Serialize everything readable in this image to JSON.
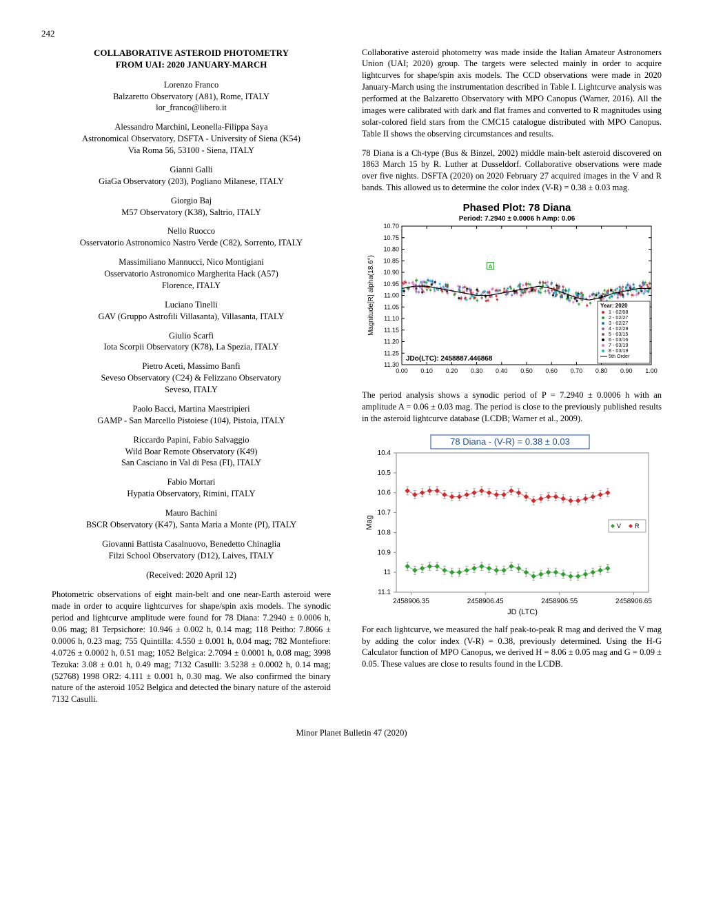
{
  "page_number": "242",
  "title_line1": "COLLABORATIVE ASTEROID PHOTOMETRY",
  "title_line2": "FROM UAI: 2020 JANUARY-MARCH",
  "authors": [
    {
      "name": "Lorenzo Franco",
      "affil": "Balzaretto Observatory (A81), Rome, ITALY",
      "email": "lor_franco@libero.it"
    },
    {
      "name": "Alessandro Marchini, Leonella-Filippa Saya",
      "affil": "Astronomical Observatory, DSFTA - University of Siena (K54)",
      "affil2": "Via Roma 56, 53100 - Siena, ITALY"
    },
    {
      "name": "Gianni Galli",
      "affil": "GiaGa Observatory (203), Pogliano Milanese, ITALY"
    },
    {
      "name": "Giorgio Baj",
      "affil": "M57 Observatory (K38), Saltrio, ITALY"
    },
    {
      "name": "Nello Ruocco",
      "affil": "Osservatorio Astronomico Nastro Verde (C82), Sorrento, ITALY"
    },
    {
      "name": "Massimiliano Mannucci, Nico Montigiani",
      "affil": "Osservatorio Astronomico Margherita Hack (A57)",
      "affil2": "Florence, ITALY"
    },
    {
      "name": "Luciano Tinelli",
      "affil": "GAV (Gruppo Astrofili Villasanta), Villasanta, ITALY"
    },
    {
      "name": "Giulio Scarfi",
      "affil": "Iota Scorpii Observatory (K78), La Spezia, ITALY"
    },
    {
      "name": "Pietro Aceti, Massimo Banfi",
      "affil": "Seveso Observatory (C24) & Felizzano Observatory",
      "affil2": "Seveso, ITALY"
    },
    {
      "name": "Paolo Bacci, Martina Maestripieri",
      "affil": "GAMP - San Marcello Pistoiese (104), Pistoia, ITALY"
    },
    {
      "name": "Riccardo Papini, Fabio Salvaggio",
      "affil": "Wild Boar Remote Observatory (K49)",
      "affil2": "San Casciano in Val di Pesa (FI), ITALY"
    },
    {
      "name": "Fabio Mortari",
      "affil": "Hypatia Observatory, Rimini, ITALY"
    },
    {
      "name": "Mauro Bachini",
      "affil": "BSCR Observatory (K47), Santa Maria a Monte (PI), ITALY"
    },
    {
      "name": "Giovanni Battista Casalnuovo, Benedetto Chinaglia",
      "affil": "Filzi School Observatory (D12), Laives, ITALY"
    }
  ],
  "received": "(Received: 2020 April 12)",
  "abstract": "Photometric observations of eight main-belt and one near-Earth asteroid were made in order to acquire lightcurves for shape/spin axis models. The synodic period and lightcurve amplitude were found for 78 Diana: 7.2940 ± 0.0006 h, 0.06 mag; 81 Terpsichore: 10.946 ± 0.002 h, 0.14 mag; 118 Peitho: 7.8066 ± 0.0006 h, 0.23 mag; 755 Quintilla: 4.550 ± 0.001 h, 0.04 mag; 782 Montefiore: 4.0726 ± 0.0002 h, 0.51 mag; 1052 Belgica: 2.7094 ± 0.0001 h, 0.08 mag; 3998 Tezuka: 3.08 ± 0.01 h, 0.49 mag; 7132 Casulli: 3.5238 ± 0.0002 h, 0.14 mag; (52768) 1998 OR2: 4.111 ± 0.001 h, 0.30 mag. We also confirmed the binary nature of the asteroid 1052 Belgica and detected the binary nature of the asteroid 7132 Casulli.",
  "para1": "Collaborative asteroid photometry was made inside the Italian Amateur Astronomers Union (UAI; 2020) group. The targets were selected mainly in order to acquire lightcurves for shape/spin axis models. The CCD observations were made in 2020 January-March using the instrumentation described in Table I. Lightcurve analysis was performed at the Balzaretto Observatory with MPO Canopus (Warner, 2016). All the images were calibrated with dark and flat frames and converted to R magnitudes using solar-colored field stars from the CMC15 catalogue distributed with MPO Canopus. Table II shows the observing circumstances and results.",
  "para2": "78 Diana is a Ch-type (Bus & Binzel, 2002) middle main-belt asteroid discovered on 1863 March 15 by R. Luther at Dusseldorf. Collaborative observations were made over five nights. DSFTA (2020) on 2020 February 27 acquired images in the V and R bands. This allowed us to determine the color index (V-R) = 0.38 ± 0.03 mag.",
  "para3": "The period analysis shows a synodic period of P = 7.2940 ± 0.0006 h with an amplitude A = 0.06 ± 0.03 mag. The period is close to the previously published results in the asteroid lightcurve database (LCDB; Warner et al., 2009).",
  "para4": "For each lightcurve, we measured the half peak-to-peak R mag and derived the V mag by adding the color index (V-R) = 0.38, previously determined. Using the H-G Calculator function of MPO Canopus, we derived H = 8.06 ± 0.05 mag and G = 0.09 ± 0.05. These values are close to results found in the LCDB.",
  "footer": "Minor Planet Bulletin 47 (2020)",
  "chart1": {
    "title": "Phased Plot: 78 Diana",
    "subtitle": "Period: 7.2940 ± 0.0006 h  Amp: 0.06",
    "ylabel": "Magnitude[R] alpha(18.6°)",
    "xlabel_text": "JDo(LTC): 2458887.446868",
    "y_ticks": [
      "10.70",
      "10.75",
      "10.80",
      "10.85",
      "10.90",
      "10.95",
      "11.00",
      "11.05",
      "11.10",
      "11.15",
      "11.20",
      "11.25",
      "11.30"
    ],
    "x_ticks": [
      "0.00",
      "0.10",
      "0.20",
      "0.30",
      "0.40",
      "0.50",
      "0.60",
      "0.70",
      "0.80",
      "0.90",
      "1.00"
    ],
    "ylim": [
      10.7,
      11.3
    ],
    "xlim": [
      0,
      1
    ],
    "legend_title": "Year: 2020",
    "legend_items": [
      {
        "label": "1 - 02/08",
        "color": "#d62728",
        "marker": "circle"
      },
      {
        "label": "2 - 02/27",
        "color": "#2ca02c",
        "marker": "triangle"
      },
      {
        "label": "3 - 02/27",
        "color": "#1f77b4",
        "marker": "triangle-down"
      },
      {
        "label": "4 - 02/28",
        "color": "#9467bd",
        "marker": "diamond"
      },
      {
        "label": "5 - 03/15",
        "color": "#8c564b",
        "marker": "plus"
      },
      {
        "label": "6 - 03/16",
        "color": "#000000",
        "marker": "square"
      },
      {
        "label": "7 - 03/19",
        "color": "#e377c2",
        "marker": "x"
      },
      {
        "label": "8 - 03/19",
        "color": "#17becf",
        "marker": "square"
      },
      {
        "label": "5th Order",
        "color": "#000000",
        "marker": "line"
      }
    ],
    "curve_x": [
      0,
      0.05,
      0.1,
      0.15,
      0.2,
      0.25,
      0.3,
      0.35,
      0.4,
      0.45,
      0.5,
      0.55,
      0.6,
      0.65,
      0.7,
      0.75,
      0.8,
      0.85,
      0.9,
      0.95,
      1.0
    ],
    "curve_y": [
      10.97,
      10.96,
      10.96,
      10.97,
      10.98,
      10.99,
      11.0,
      11.0,
      10.99,
      10.98,
      10.97,
      10.96,
      10.97,
      10.99,
      11.01,
      11.02,
      11.01,
      10.99,
      10.98,
      10.97,
      10.97
    ],
    "scatter_colors": [
      "#d62728",
      "#2ca02c",
      "#1f77b4",
      "#9467bd",
      "#8c564b",
      "#000000",
      "#e377c2",
      "#17becf"
    ],
    "bg": "#ffffff",
    "grid_color": "#666666"
  },
  "chart2": {
    "title_box": "78 Diana - (V-R) = 0.38 ± 0.03",
    "ylabel": "Mag",
    "xlabel": "JD (LTC)",
    "y_ticks": [
      "10.4",
      "10.5",
      "10.6",
      "10.7",
      "10.8",
      "10.9",
      "11",
      "11.1"
    ],
    "x_ticks": [
      "2458906.35",
      "2458906.45",
      "2458906.55",
      "2458906.65"
    ],
    "ylim": [
      10.4,
      11.1
    ],
    "xlim": [
      2458906.33,
      2458906.67
    ],
    "legend": [
      {
        "label": "V",
        "color": "#2ca02c",
        "marker": "diamond"
      },
      {
        "label": "R",
        "color": "#d62728",
        "marker": "diamond"
      }
    ],
    "v_y": [
      10.97,
      10.99,
      10.98,
      10.97,
      10.97,
      10.99,
      11.0,
      11.0,
      10.99,
      10.98,
      10.97,
      10.98,
      10.99,
      10.99,
      10.97,
      10.98,
      11.0,
      11.02,
      11.01,
      11.0,
      11.0,
      11.01,
      11.02,
      11.02,
      11.01,
      11.0,
      10.99,
      10.98
    ],
    "r_y": [
      10.59,
      10.61,
      10.6,
      10.59,
      10.59,
      10.61,
      10.62,
      10.62,
      10.61,
      10.6,
      10.59,
      10.6,
      10.61,
      10.61,
      10.59,
      10.6,
      10.62,
      10.64,
      10.63,
      10.62,
      10.62,
      10.63,
      10.64,
      10.64,
      10.63,
      10.62,
      10.61,
      10.6
    ],
    "x_vals": [
      2458906.345,
      2458906.355,
      2458906.365,
      2458906.375,
      2458906.385,
      2458906.395,
      2458906.405,
      2458906.415,
      2458906.425,
      2458906.435,
      2458906.445,
      2458906.455,
      2458906.465,
      2458906.475,
      2458906.485,
      2458906.495,
      2458906.505,
      2458906.515,
      2458906.525,
      2458906.535,
      2458906.545,
      2458906.555,
      2458906.565,
      2458906.575,
      2458906.585,
      2458906.595,
      2458906.605,
      2458906.615
    ],
    "bg": "#ffffff"
  }
}
